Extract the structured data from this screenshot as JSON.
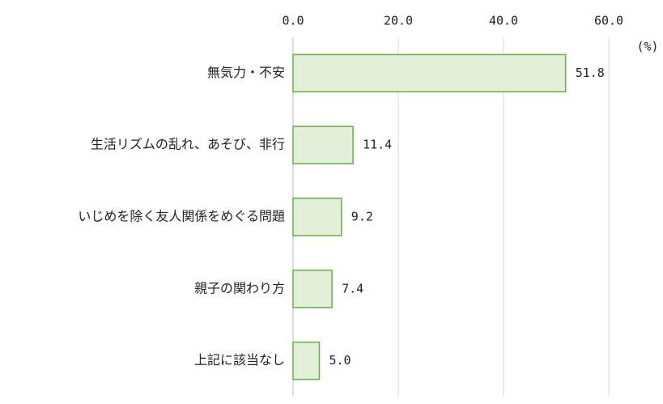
{
  "chart_data": {
    "type": "barh",
    "unit": "(%)",
    "categories": [
      "無気力・不安",
      "生活リズムの乱れ、あそび、非行",
      "いじめを除く友人関係をめぐる問題",
      "親子の関わり方",
      "上記に該当なし"
    ],
    "values": [
      51.8,
      11.4,
      9.2,
      7.4,
      5.0
    ],
    "value_labels": [
      "51.8",
      "11.4",
      "9.2",
      "7.4",
      "5.0"
    ],
    "color": "#e2f0d9",
    "edge_color": "#6aae45",
    "xlim": [
      0,
      60
    ],
    "xticks": [
      {
        "value": 0,
        "label": "0.0"
      },
      {
        "value": 20,
        "label": "20.0"
      },
      {
        "value": 40,
        "label": "40.0"
      },
      {
        "value": 60,
        "label": "60.0"
      }
    ],
    "grid": true
  }
}
